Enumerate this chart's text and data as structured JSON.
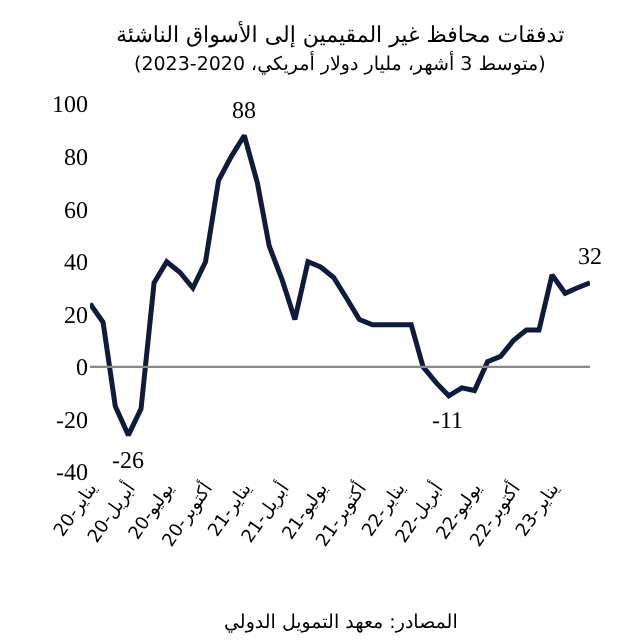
{
  "chart_data": {
    "type": "line",
    "title": "تدفقات محافظ غير المقيمين إلى الأسواق الناشئة",
    "subtitle": "(متوسط 3 أشهر، مليار دولار أمريكي، 2020-2023)",
    "x": [
      "2020-01",
      "2020-02",
      "2020-03",
      "2020-04",
      "2020-05",
      "2020-06",
      "2020-07",
      "2020-08",
      "2020-09",
      "2020-10",
      "2020-11",
      "2020-12",
      "2021-01",
      "2021-02",
      "2021-03",
      "2021-04",
      "2021-05",
      "2021-06",
      "2021-07",
      "2021-08",
      "2021-09",
      "2021-10",
      "2021-11",
      "2021-12",
      "2022-01",
      "2022-02",
      "2022-03",
      "2022-04",
      "2022-05",
      "2022-06",
      "2022-07",
      "2022-08",
      "2022-09",
      "2022-10",
      "2022-11",
      "2022-12",
      "2023-01",
      "2023-02",
      "2023-03",
      "2023-04"
    ],
    "series": [
      {
        "color": "#0f1b3d",
        "values": [
          24,
          17,
          -15,
          -26,
          -16,
          32,
          40,
          36,
          30,
          40,
          71,
          80,
          88,
          70,
          46,
          33,
          18,
          40,
          38,
          34,
          26,
          18,
          16,
          16,
          16,
          16,
          0,
          -6,
          -11,
          -8,
          -9,
          2,
          4,
          10,
          14,
          14,
          35,
          28,
          30,
          32
        ]
      }
    ],
    "xlim": [
      "2020-01",
      "2023-04"
    ],
    "xticks": [
      {
        "value": "2020-01",
        "label": "يناير-20"
      },
      {
        "value": "2020-04",
        "label": "أبريل-20"
      },
      {
        "value": "2020-07",
        "label": "يوليو-20"
      },
      {
        "value": "2020-10",
        "label": "أكتوبر-20"
      },
      {
        "value": "2021-01",
        "label": "يناير-21"
      },
      {
        "value": "2021-04",
        "label": "أبريل-21"
      },
      {
        "value": "2021-07",
        "label": "يوليو-21"
      },
      {
        "value": "2021-10",
        "label": "أكتوبر-21"
      },
      {
        "value": "2022-01",
        "label": "يناير-22"
      },
      {
        "value": "2022-04",
        "label": "أبريل-22"
      },
      {
        "value": "2022-07",
        "label": "يوليو-22"
      },
      {
        "value": "2022-10",
        "label": "أكتوبر-22"
      },
      {
        "value": "2023-01",
        "label": "يناير-23"
      }
    ],
    "ylim": [
      -40,
      100
    ],
    "yticks": [
      -40,
      -20,
      0,
      20,
      40,
      60,
      80,
      100
    ],
    "ref_lines": [
      {
        "axis": "y",
        "value": 0,
        "color": "#888888"
      }
    ],
    "grid": false,
    "marker": "none",
    "line_style": "solid",
    "annotations": [
      {
        "text": "88",
        "x": "2021-01",
        "y": 88
      },
      {
        "text": "-26",
        "x": "2020-04",
        "y": -26
      },
      {
        "text": "-11",
        "x": "2022-05",
        "y": -11
      },
      {
        "text": "32",
        "x": "2023-04",
        "y": 32
      },
      "المصادر: معهد التمويل الدولي"
    ]
  }
}
